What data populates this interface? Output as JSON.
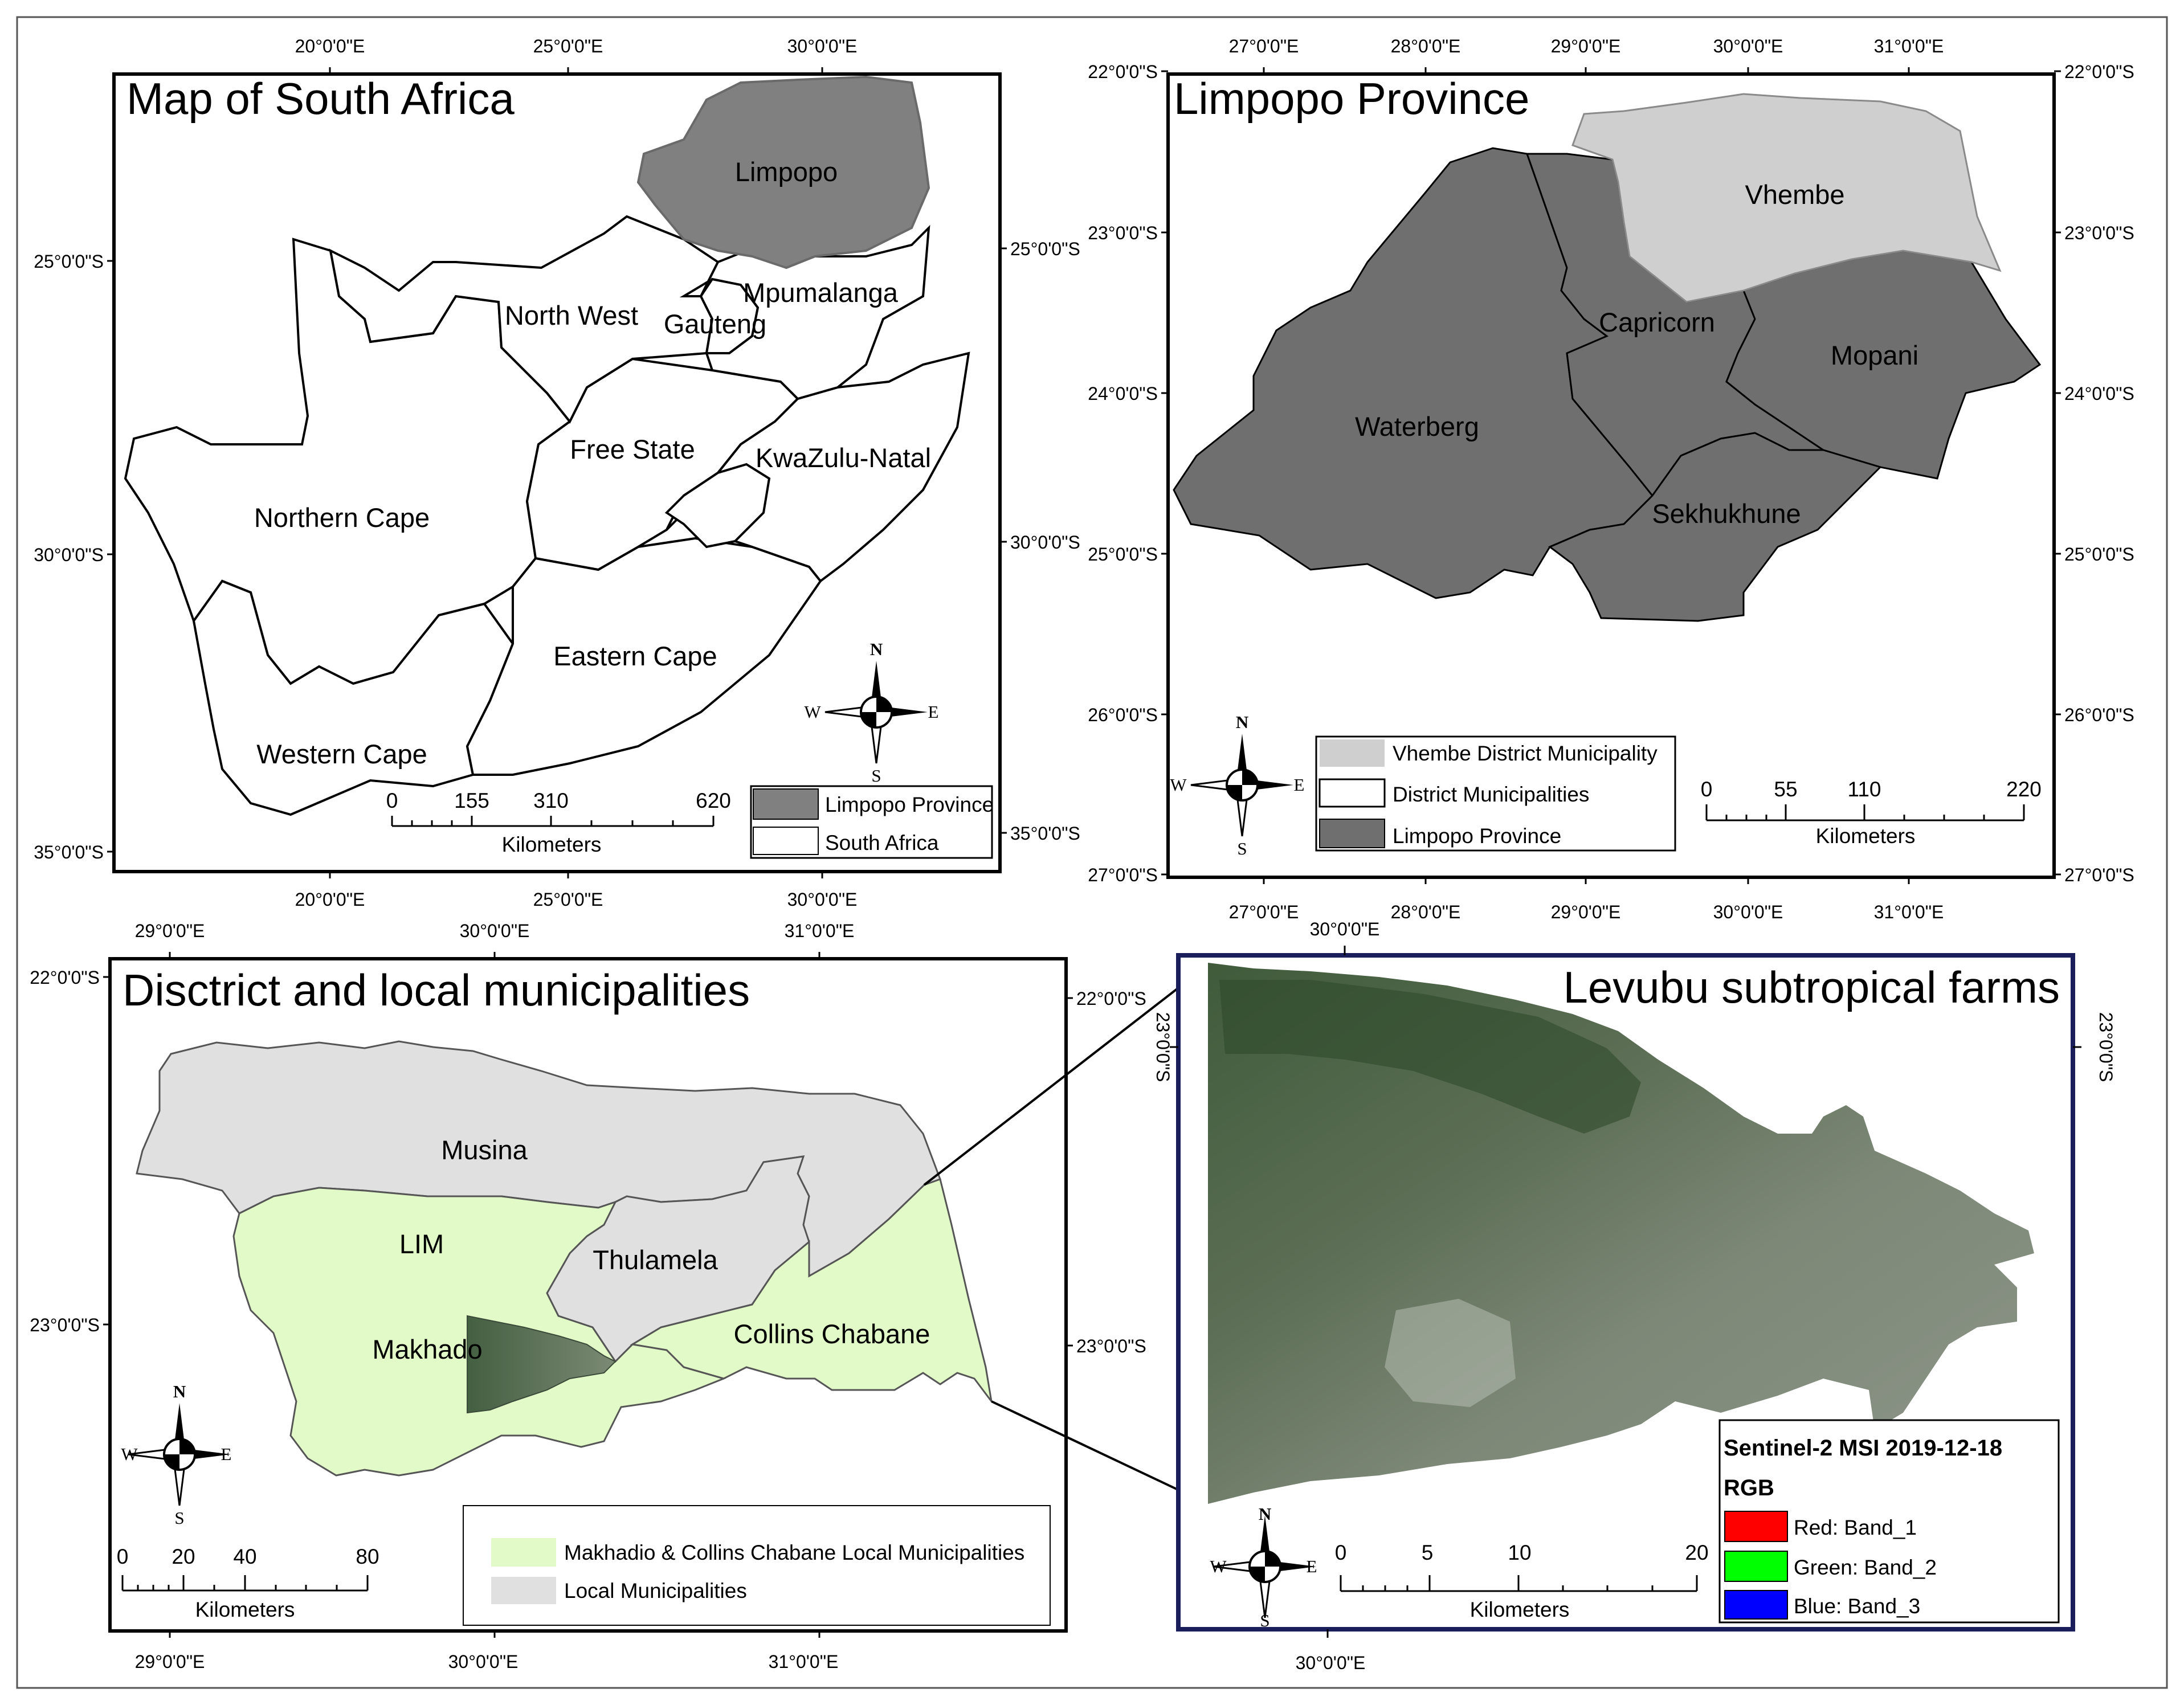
{
  "panels": {
    "sa": {
      "title": "Map of South Africa",
      "regions": {
        "limpopo": "Limpopo",
        "north_west": "North West",
        "gauteng": "Gauteng",
        "mpumalanga": "Mpumalanga",
        "free_state": "Free State",
        "kwazulu_natal": "KwaZulu-Natal",
        "northern_cape": "Northern Cape",
        "eastern_cape": "Eastern Cape",
        "western_cape": "Western Cape"
      },
      "top_ticks": [
        "20°0'0\"E",
        "25°0'0\"E",
        "30°0'0\"E"
      ],
      "bottom_ticks": [
        "20°0'0\"E",
        "25°0'0\"E",
        "30°0'0\"E"
      ],
      "left_ticks": [
        "25°0'0\"S",
        "30°0'0\"S",
        "35°0'0\"S"
      ],
      "right_ticks": [
        "25°0'0\"S",
        "30°0'0\"S",
        "35°0'0\"S"
      ],
      "scale": {
        "labels": [
          "0",
          "155",
          "310",
          "620"
        ],
        "unit": "Kilometers"
      },
      "legend": [
        {
          "label": "Limpopo Province",
          "color": "#808080"
        },
        {
          "label": "South Africa",
          "color": "#ffffff"
        }
      ]
    },
    "limpopo": {
      "title": "Limpopo Province",
      "regions": {
        "vhembe": "Vhembe",
        "capricorn": "Capricorn",
        "mopani": "Mopani",
        "waterberg": "Waterberg",
        "sekhukhune": "Sekhukhune"
      },
      "top_ticks": [
        "27°0'0\"E",
        "28°0'0\"E",
        "29°0'0\"E",
        "30°0'0\"E",
        "31°0'0\"E"
      ],
      "bottom_ticks": [
        "27°0'0\"E",
        "28°0'0\"E",
        "29°0'0\"E",
        "30°0'0\"E",
        "31°0'0\"E"
      ],
      "left_ticks": [
        "22°0'0\"S",
        "23°0'0\"S",
        "24°0'0\"S",
        "25°0'0\"S",
        "26°0'0\"S",
        "27°0'0\"S"
      ],
      "right_ticks": [
        "22°0'0\"S",
        "23°0'0\"S",
        "24°0'0\"S",
        "25°0'0\"S",
        "26°0'0\"S",
        "27°0'0\"S"
      ],
      "scale": {
        "labels": [
          "0",
          "55",
          "110",
          "220"
        ],
        "unit": "Kilometers"
      },
      "legend": [
        {
          "label": "Vhembe District Municipality",
          "color": "#cfcfcf"
        },
        {
          "label": "District Municipalities",
          "color": "#ffffff"
        },
        {
          "label": "Limpopo Province",
          "color": "#6f6f6f"
        }
      ]
    },
    "district": {
      "title": "Disctrict and local municipalities",
      "regions": {
        "musina": "Musina",
        "lim": "LIM",
        "thulamela": "Thulamela",
        "makhado": "Makhado",
        "collins_chabane": "Collins Chabane"
      },
      "top_ticks": [
        "29°0'0\"E",
        "30°0'0\"E",
        "31°0'0\"E"
      ],
      "bottom_ticks": [
        "29°0'0\"E",
        "30°0'0\"E",
        "31°0'0\"E"
      ],
      "left_ticks": [
        "22°0'0\"S",
        "23°0'0\"S"
      ],
      "right_ticks": [
        "22°0'0\"S",
        "23°0'0\"S"
      ],
      "scale": {
        "labels": [
          "0",
          "20",
          "40",
          "80"
        ],
        "unit": "Kilometers"
      },
      "legend": [
        {
          "label": "Makhadio & Collins Chabane Local Municipalities",
          "color": "#e2f9c8"
        },
        {
          "label": "Local Municipalities",
          "color": "#e0e0e0"
        }
      ]
    },
    "levubu": {
      "title": "Levubu subtropical farms",
      "top_ticks": [
        "30°0'0\"E"
      ],
      "bottom_ticks": [
        "30°0'0\"E"
      ],
      "left_ticks": [
        "23°0'0\"S"
      ],
      "right_ticks": [
        "23°0'0\"S"
      ],
      "scale": {
        "labels": [
          "0",
          "5",
          "10",
          "20"
        ],
        "unit": "Kilometers"
      },
      "legend_title": "Sentinel-2 MSI 2019-12-18",
      "legend_subtitle": "RGB",
      "bands": [
        {
          "label": "Red:   Band_1",
          "color": "#ff0000"
        },
        {
          "label": "Green: Band_2",
          "color": "#00ff00"
        },
        {
          "label": "Blue:   Band_3",
          "color": "#0000ff"
        }
      ]
    }
  },
  "compass": {
    "n": "N",
    "s": "S",
    "e": "E",
    "w": "W"
  },
  "colors": {
    "limpopo_fill": "#808080",
    "district_fill": "#6f6f6f",
    "vhembe_fill": "#cfcfcf",
    "local_fill": "#e0e0e0",
    "highlight_fill": "#e2f9c8",
    "frame_blue": "#1a1f5c"
  }
}
